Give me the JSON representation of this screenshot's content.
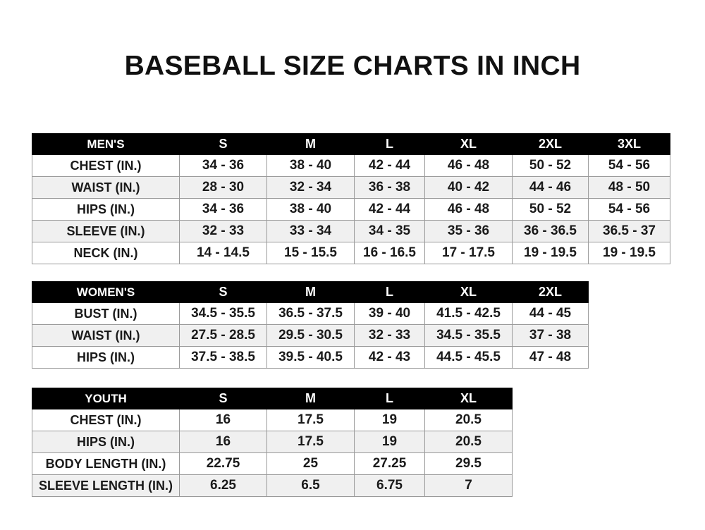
{
  "title": "BASEBALL SIZE CHARTS IN INCH",
  "tables": [
    {
      "header": "MEN'S",
      "sizes": [
        "S",
        "M",
        "L",
        "XL",
        "2XL",
        "3XL"
      ],
      "rows": [
        {
          "label": "CHEST (IN.)",
          "values": [
            "34 - 36",
            "38 - 40",
            "42 - 44",
            "46 - 48",
            "50 - 52",
            "54 - 56"
          ]
        },
        {
          "label": "WAIST (IN.)",
          "values": [
            "28 - 30",
            "32 - 34",
            "36 - 38",
            "40 - 42",
            "44 - 46",
            "48 - 50"
          ]
        },
        {
          "label": "HIPS (IN.)",
          "values": [
            "34 - 36",
            "38 - 40",
            "42 - 44",
            "46 - 48",
            "50 - 52",
            "54 - 56"
          ]
        },
        {
          "label": "SLEEVE (IN.)",
          "values": [
            "32 - 33",
            "33 - 34",
            "34 - 35",
            "35 - 36",
            "36 - 36.5",
            "36.5 - 37"
          ]
        },
        {
          "label": "NECK (IN.)",
          "values": [
            "14 - 14.5",
            "15 - 15.5",
            "16 - 16.5",
            "17 - 17.5",
            "19 - 19.5",
            "19 - 19.5"
          ]
        }
      ]
    },
    {
      "header": "WOMEN'S",
      "sizes": [
        "S",
        "M",
        "L",
        "XL",
        "2XL"
      ],
      "rows": [
        {
          "label": "BUST (IN.)",
          "values": [
            "34.5 - 35.5",
            "36.5 - 37.5",
            "39 - 40",
            "41.5 - 42.5",
            "44 - 45"
          ]
        },
        {
          "label": "WAIST (IN.)",
          "values": [
            "27.5 - 28.5",
            "29.5 - 30.5",
            "32 - 33",
            "34.5 - 35.5",
            "37 - 38"
          ]
        },
        {
          "label": "HIPS (IN.)",
          "values": [
            "37.5 - 38.5",
            "39.5 - 40.5",
            "42 - 43",
            "44.5 - 45.5",
            "47 - 48"
          ]
        }
      ]
    },
    {
      "header": "YOUTH",
      "sizes": [
        "S",
        "M",
        "L",
        "XL"
      ],
      "rows": [
        {
          "label": "CHEST (IN.)",
          "values": [
            "16",
            "17.5",
            "19",
            "20.5"
          ]
        },
        {
          "label": "HIPS (IN.)",
          "values": [
            "16",
            "17.5",
            "19",
            "20.5"
          ]
        },
        {
          "label": "BODY LENGTH (IN.)",
          "values": [
            "22.75",
            "25",
            "27.25",
            "29.5"
          ]
        },
        {
          "label": "SLEEVE LENGTH (IN.)",
          "values": [
            "6.25",
            "6.5",
            "6.75",
            "7"
          ]
        }
      ]
    }
  ]
}
